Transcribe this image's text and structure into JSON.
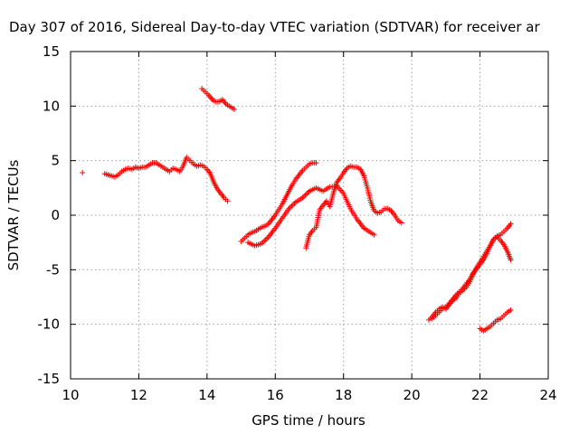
{
  "chart_data": {
    "type": "scatter",
    "title": "Day 307 of 2016, Sidereal Day-to-day VTEC variation (SDTVAR) for receiver ar",
    "xlabel": "GPS time / hours",
    "ylabel": "SDTVAR / TECUs",
    "xlim": [
      10,
      24
    ],
    "ylim": [
      -15,
      15
    ],
    "xticks": [
      "10",
      "12",
      "14",
      "16",
      "18",
      "20",
      "22",
      "24"
    ],
    "yticks": [
      "15",
      "10",
      "5",
      "0",
      "-5",
      "-10",
      "-15"
    ],
    "grid": true,
    "marker": "+",
    "marker_color": "#ff0000",
    "series": [
      {
        "x": [
          10.35
        ],
        "y": [
          3.9
        ]
      },
      {
        "x": [
          11.0,
          11.1,
          11.2,
          11.3,
          11.4,
          11.5,
          11.6,
          11.7,
          11.8,
          11.9,
          12.0,
          12.1,
          12.2,
          12.3,
          12.4,
          12.5,
          12.6,
          12.7,
          12.8,
          12.9,
          13.0,
          13.1,
          13.2,
          13.3,
          13.4,
          13.5,
          13.6,
          13.7,
          13.8,
          13.9,
          14.0,
          14.1,
          14.2,
          14.3,
          14.4,
          14.5,
          14.6
        ],
        "y": [
          3.8,
          3.7,
          3.6,
          3.5,
          3.7,
          4.0,
          4.2,
          4.3,
          4.2,
          4.4,
          4.3,
          4.4,
          4.4,
          4.6,
          4.8,
          4.8,
          4.6,
          4.4,
          4.2,
          4.0,
          4.3,
          4.2,
          4.0,
          4.5,
          5.3,
          5.0,
          4.7,
          4.5,
          4.6,
          4.5,
          4.2,
          3.8,
          3.0,
          2.4,
          2.0,
          1.6,
          1.3
        ]
      },
      {
        "x": [
          13.85,
          13.95,
          14.05,
          14.15,
          14.25,
          14.35,
          14.45,
          14.55,
          14.65,
          14.8
        ],
        "y": [
          11.6,
          11.3,
          11.0,
          10.6,
          10.4,
          10.4,
          10.6,
          10.2,
          10.0,
          9.7
        ]
      },
      {
        "x": [
          15.0,
          15.1,
          15.2,
          15.3,
          15.4,
          15.5,
          15.6,
          15.7,
          15.8,
          15.9,
          16.0,
          16.1,
          16.2,
          16.3,
          16.4,
          16.5,
          16.6,
          16.7,
          16.8,
          16.9,
          17.0,
          17.1,
          17.2
        ],
        "y": [
          -2.4,
          -2.1,
          -1.8,
          -1.6,
          -1.5,
          -1.3,
          -1.1,
          -1.0,
          -0.8,
          -0.4,
          0.0,
          0.5,
          1.0,
          1.6,
          2.2,
          2.8,
          3.3,
          3.7,
          4.1,
          4.4,
          4.7,
          4.8,
          4.8
        ]
      },
      {
        "x": [
          15.2,
          15.4,
          15.6,
          15.8,
          16.0,
          16.2,
          16.4,
          16.6,
          16.8,
          17.0,
          17.2,
          17.4,
          17.6,
          17.8,
          18.0,
          18.2,
          18.4,
          18.6,
          18.8,
          18.9
        ],
        "y": [
          -2.5,
          -2.8,
          -2.6,
          -2.0,
          -1.2,
          -0.3,
          0.6,
          1.2,
          1.6,
          2.2,
          2.5,
          2.2,
          2.6,
          2.7,
          2.0,
          0.6,
          -0.4,
          -1.2,
          -1.6,
          -1.8
        ]
      },
      {
        "x": [
          16.9,
          17.0,
          17.1,
          17.2,
          17.3,
          17.4,
          17.5,
          17.6,
          17.7,
          17.8,
          17.9,
          18.0,
          18.1,
          18.2,
          18.3,
          18.4,
          18.5,
          18.6,
          18.7,
          18.8,
          18.9,
          19.0,
          19.1,
          19.2,
          19.3,
          19.4,
          19.5,
          19.6,
          19.7
        ],
        "y": [
          -3.0,
          -1.8,
          -1.4,
          -1.1,
          0.5,
          0.9,
          1.3,
          0.8,
          2.0,
          3.0,
          3.4,
          3.9,
          4.3,
          4.5,
          4.4,
          4.4,
          4.2,
          3.6,
          2.5,
          1.2,
          0.4,
          0.2,
          0.3,
          0.6,
          0.6,
          0.4,
          0.0,
          -0.5,
          -0.7
        ]
      },
      {
        "x": [
          20.5,
          20.6,
          20.7,
          20.8,
          20.9,
          21.0,
          21.1,
          21.2,
          21.3,
          21.4,
          21.5,
          21.6,
          21.7,
          21.8,
          21.9,
          22.0,
          22.1,
          22.2,
          22.3,
          22.4,
          22.5,
          22.6,
          22.7,
          22.8,
          22.9
        ],
        "y": [
          -9.6,
          -9.3,
          -8.9,
          -8.6,
          -8.4,
          -8.6,
          -8.2,
          -7.8,
          -7.6,
          -7.1,
          -6.9,
          -6.6,
          -6.1,
          -5.4,
          -4.9,
          -4.5,
          -4.1,
          -3.5,
          -2.8,
          -2.2,
          -1.9,
          -1.8,
          -1.5,
          -1.2,
          -0.8
        ]
      },
      {
        "x": [
          20.6,
          20.7,
          20.8,
          20.9,
          21.0,
          21.1,
          21.2,
          21.3,
          21.4,
          21.5,
          21.6,
          21.7,
          21.8,
          21.9,
          22.0,
          22.1,
          22.2,
          22.3,
          22.4,
          22.5,
          22.6,
          22.7,
          22.8,
          22.9
        ],
        "y": [
          -9.5,
          -9.2,
          -8.9,
          -8.6,
          -8.4,
          -8.1,
          -7.7,
          -7.3,
          -7.0,
          -6.7,
          -6.3,
          -5.9,
          -5.3,
          -4.8,
          -4.3,
          -3.8,
          -3.3,
          -2.8,
          -2.2,
          -2.0,
          -2.3,
          -2.7,
          -3.3,
          -4.1
        ]
      },
      {
        "x": [
          22.0,
          22.1,
          22.2,
          22.3,
          22.4,
          22.5,
          22.6,
          22.7,
          22.8,
          22.9
        ],
        "y": [
          -10.4,
          -10.6,
          -10.4,
          -10.2,
          -9.9,
          -9.6,
          -9.5,
          -9.2,
          -8.9,
          -8.7
        ]
      }
    ]
  }
}
